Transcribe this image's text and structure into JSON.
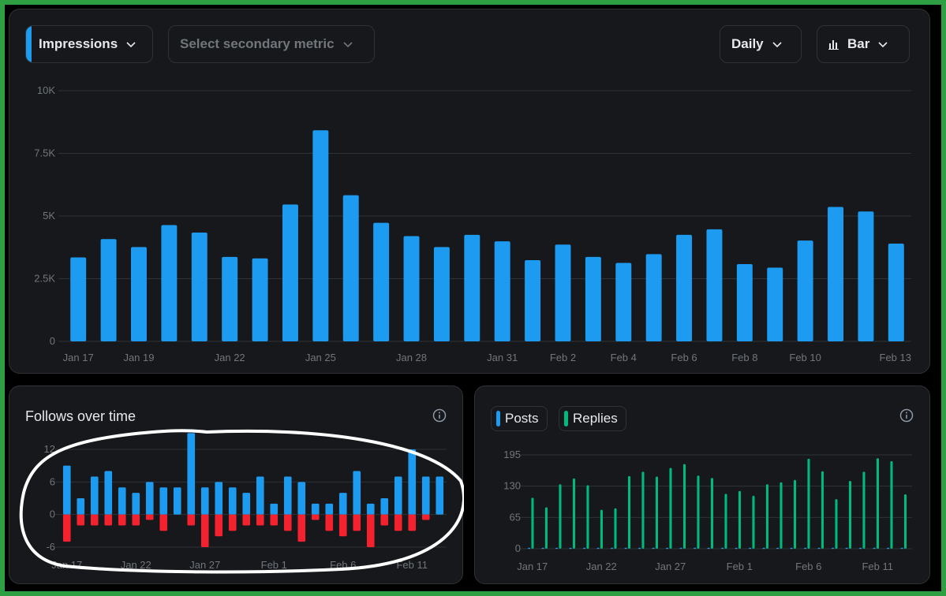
{
  "toolbar": {
    "primary_metric": "Impressions",
    "secondary_metric_placeholder": "Select secondary metric",
    "interval": "Daily",
    "chart_type": "Bar"
  },
  "colors": {
    "accent": "#1d9bf0",
    "negative": "#f4212e",
    "replies": "#00ba7c",
    "annotation": "#ffffff",
    "border_frame": "#2ea043"
  },
  "follows": {
    "title": "Follows over time",
    "info_icon": "info-icon"
  },
  "posts_panel": {
    "legend": {
      "posts": "Posts",
      "replies": "Replies"
    },
    "info_icon": "info-icon"
  },
  "chart_data": [
    {
      "type": "bar",
      "ylim": [
        0,
        10000
      ],
      "y_ticks": [
        "0",
        "2.5K",
        "5K",
        "7.5K",
        "10K"
      ],
      "x_ticks": [
        "Jan 17",
        "Jan 19",
        "Jan 22",
        "Jan 25",
        "Jan 28",
        "Jan 31",
        "Feb 2",
        "Feb 4",
        "Feb 6",
        "Feb 8",
        "Feb 10",
        "Feb 13"
      ],
      "x_tick_index": [
        0,
        2,
        5,
        8,
        11,
        14,
        16,
        18,
        20,
        22,
        24,
        27
      ],
      "series": [
        {
          "values": [
            3350,
            4080,
            3760,
            4640,
            4340,
            3370,
            3310,
            5460,
            8420,
            5830,
            4730,
            4200,
            3760,
            4250,
            3990,
            3240,
            3860,
            3370,
            3130,
            3480,
            4250,
            4470,
            3080,
            2940,
            4020,
            5360,
            5180,
            3900
          ]
        }
      ]
    },
    {
      "type": "bar",
      "title": "Follows over time",
      "ylim": [
        -6,
        12
      ],
      "y_ticks": [
        "-6",
        "0",
        "6",
        "12"
      ],
      "x_ticks": [
        "Jan 17",
        "Jan 22",
        "Jan 27",
        "Feb 1",
        "Feb 6",
        "Feb 11"
      ],
      "x_tick_index": [
        0,
        5,
        10,
        15,
        20,
        25
      ],
      "series": [
        {
          "values": [
            9,
            3,
            7,
            8,
            5,
            4,
            6,
            5,
            5,
            15,
            5,
            6,
            5,
            4,
            7,
            2,
            7,
            6,
            2,
            2,
            4,
            8,
            2,
            3,
            7,
            12,
            7,
            7
          ]
        },
        {
          "values": [
            -5,
            -2,
            -2,
            -2,
            -2,
            -2,
            -1,
            -3,
            0,
            -2,
            -6,
            -4,
            -3,
            -2,
            -2,
            -2,
            -3,
            -5,
            -1,
            -3,
            -4,
            -3,
            -6,
            -2,
            -3,
            -3,
            -1,
            0
          ]
        }
      ]
    },
    {
      "type": "bar",
      "ylim": [
        0,
        195
      ],
      "y_ticks": [
        "0",
        "65",
        "130",
        "195"
      ],
      "x_ticks": [
        "Jan 17",
        "Jan 22",
        "Jan 27",
        "Feb 1",
        "Feb 6",
        "Feb 11"
      ],
      "x_tick_index": [
        0,
        5,
        10,
        15,
        20,
        25
      ],
      "series": [
        {
          "name": "Posts",
          "values": [
            2,
            2,
            2,
            2,
            2,
            2,
            2,
            2,
            2,
            2,
            2,
            2,
            2,
            2,
            2,
            2,
            2,
            2,
            2,
            2,
            2,
            2,
            2,
            2,
            2,
            2,
            2,
            2
          ]
        },
        {
          "name": "Replies",
          "values": [
            106,
            86,
            134,
            146,
            132,
            81,
            84,
            151,
            160,
            150,
            168,
            176,
            152,
            147,
            114,
            120,
            110,
            134,
            138,
            143,
            187,
            161,
            103,
            141,
            160,
            188,
            182,
            113
          ]
        }
      ]
    }
  ]
}
